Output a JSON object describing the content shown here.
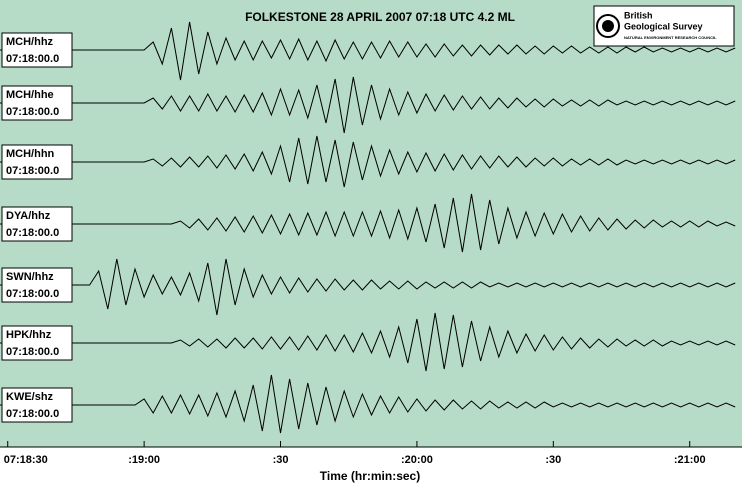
{
  "chart_data": {
    "type": "seismogram",
    "title": "FOLKESTONE  28 APRIL 2007 07:18 UTC 4.2 ML",
    "logo": {
      "line1": "British",
      "line2": "Geological Survey",
      "line3": "NATURAL ENVIRONMENT RESEARCH COUNCIL"
    },
    "x_label": "Time (hr:min:sec)",
    "xlim": [
      28.3,
      191.5
    ],
    "xticks": [
      {
        "value": 30,
        "label": "07:18:30"
      },
      {
        "value": 60,
        "label": ":19:00"
      },
      {
        "value": 90,
        "label": ":30"
      },
      {
        "value": 120,
        "label": ":20:00"
      },
      {
        "value": 150,
        "label": ":30"
      },
      {
        "value": 180,
        "label": ":21:00"
      }
    ],
    "background": "#b6dcc7",
    "color": "#000000",
    "x": [
      28,
      30,
      32,
      34,
      36,
      38,
      40,
      42,
      44,
      46,
      48,
      50,
      52,
      54,
      56,
      58,
      60,
      62,
      64,
      66,
      68,
      70,
      72,
      74,
      76,
      78,
      80,
      82,
      84,
      86,
      88,
      90,
      92,
      94,
      96,
      98,
      100,
      102,
      104,
      106,
      108,
      110,
      112,
      114,
      116,
      118,
      120,
      122,
      124,
      126,
      128,
      130,
      132,
      134,
      136,
      138,
      140,
      142,
      144,
      146,
      148,
      150,
      152,
      154,
      156,
      158,
      160,
      162,
      164,
      166,
      168,
      170,
      172,
      174,
      176,
      178,
      180,
      182,
      184,
      186,
      188,
      190
    ],
    "series": [
      {
        "name": "MCH/hhz",
        "start": "07:18:00.0",
        "values": [
          0,
          0,
          0,
          0,
          0,
          0,
          0,
          0,
          0,
          0,
          0,
          0,
          0,
          0,
          0,
          0,
          0,
          8,
          -14,
          22,
          -30,
          28,
          -24,
          18,
          -14,
          12,
          -10,
          9,
          -10,
          9,
          -8,
          10,
          -9,
          11,
          -10,
          9,
          -11,
          10,
          -9,
          8,
          -9,
          8,
          -8,
          9,
          -7,
          8,
          -7,
          6,
          -7,
          6,
          -6,
          5,
          -6,
          5,
          -5,
          5,
          -4,
          5,
          -4,
          4,
          -4,
          4,
          -3,
          4,
          -3,
          3,
          -3,
          3,
          -3,
          3,
          -2,
          3,
          -2,
          2,
          -2,
          2,
          -2,
          2,
          -2,
          2,
          -2,
          2
        ]
      },
      {
        "name": "MCH/hhe",
        "start": "07:18:00.0",
        "values": [
          0,
          0,
          0,
          0,
          0,
          0,
          0,
          0,
          0,
          0,
          0,
          0,
          0,
          0,
          0,
          0,
          0,
          5,
          -6,
          7,
          -8,
          7,
          -8,
          9,
          -8,
          7,
          -9,
          8,
          -9,
          10,
          -12,
          14,
          -12,
          13,
          -15,
          18,
          -20,
          24,
          -30,
          26,
          -22,
          18,
          -16,
          14,
          -12,
          11,
          -10,
          9,
          -8,
          8,
          -7,
          7,
          -6,
          6,
          -6,
          5,
          -5,
          5,
          -4,
          4,
          -4,
          4,
          -3,
          3,
          -3,
          3,
          -3,
          3,
          -2,
          2,
          -2,
          2,
          -2,
          2,
          -2,
          2,
          -2,
          2,
          -2,
          2,
          -2,
          2
        ]
      },
      {
        "name": "MCH/hhn",
        "start": "07:18:00.0",
        "values": [
          0,
          0,
          0,
          0,
          0,
          0,
          0,
          0,
          0,
          0,
          0,
          0,
          0,
          0,
          0,
          0,
          0,
          3,
          -4,
          4,
          -5,
          5,
          -5,
          6,
          -6,
          7,
          -7,
          8,
          -9,
          10,
          -12,
          16,
          -20,
          24,
          -22,
          26,
          -20,
          22,
          -25,
          20,
          -18,
          16,
          -14,
          12,
          -12,
          10,
          -10,
          9,
          -9,
          8,
          -8,
          7,
          -7,
          6,
          -6,
          6,
          -5,
          5,
          -5,
          4,
          -4,
          4,
          -4,
          3,
          -3,
          3,
          -3,
          3,
          -3,
          2,
          -2,
          2,
          -2,
          2,
          -2,
          2,
          -2,
          2,
          -2,
          2,
          -2,
          2
        ]
      },
      {
        "name": "DYA/hhz",
        "start": "07:18:00.0",
        "values": [
          0,
          0,
          0,
          0,
          0,
          0,
          0,
          0,
          0,
          0,
          0,
          0,
          0,
          0,
          0,
          0,
          0,
          0,
          0,
          0,
          3,
          -4,
          5,
          -6,
          6,
          -7,
          7,
          -8,
          8,
          -9,
          9,
          -10,
          10,
          -11,
          11,
          -11,
          12,
          -12,
          12,
          -12,
          12,
          -12,
          13,
          -14,
          14,
          -15,
          16,
          -18,
          20,
          -24,
          26,
          -28,
          30,
          -26,
          24,
          -20,
          16,
          -14,
          12,
          -12,
          11,
          -10,
          10,
          -8,
          8,
          -7,
          6,
          -6,
          5,
          -5,
          4,
          -4,
          4,
          -3,
          3,
          -3,
          3,
          -3,
          3,
          -2,
          2,
          -2
        ]
      },
      {
        "name": "SWN/hhz",
        "start": "07:18:00.0",
        "values": [
          0,
          0,
          0,
          0,
          0,
          0,
          0,
          0,
          0,
          0,
          0,
          14,
          -24,
          26,
          -20,
          16,
          -12,
          10,
          -9,
          8,
          -10,
          12,
          -16,
          22,
          -30,
          26,
          -20,
          16,
          -12,
          10,
          -9,
          8,
          -8,
          7,
          -7,
          6,
          -6,
          6,
          -5,
          5,
          -5,
          5,
          -4,
          4,
          -4,
          4,
          -4,
          3,
          -3,
          3,
          -3,
          3,
          -3,
          3,
          -2,
          2,
          -2,
          2,
          -2,
          2,
          -2,
          2,
          -2,
          2,
          -2,
          2,
          -2,
          2,
          -2,
          2,
          -2,
          2,
          -2,
          2,
          -2,
          2,
          -2,
          2,
          -2,
          2,
          -2,
          2
        ]
      },
      {
        "name": "HPK/hhz",
        "start": "07:18:00.0",
        "values": [
          0,
          0,
          0,
          0,
          0,
          0,
          0,
          0,
          0,
          0,
          0,
          0,
          0,
          0,
          0,
          0,
          0,
          0,
          0,
          0,
          3,
          -3,
          4,
          -4,
          4,
          -5,
          5,
          -5,
          5,
          -6,
          6,
          -6,
          6,
          -7,
          7,
          -7,
          8,
          -8,
          8,
          -9,
          10,
          -10,
          12,
          -14,
          16,
          -20,
          24,
          -28,
          30,
          -26,
          28,
          -24,
          22,
          -18,
          16,
          -14,
          12,
          -10,
          9,
          -8,
          8,
          -7,
          6,
          -6,
          5,
          -5,
          4,
          -4,
          4,
          -3,
          3,
          -3,
          3,
          -3,
          2,
          -2,
          2,
          -2,
          2,
          -2,
          2,
          -2
        ]
      },
      {
        "name": "KWE/shz",
        "start": "07:18:00.0",
        "values": [
          0,
          0,
          0,
          0,
          0,
          0,
          0,
          0,
          0,
          0,
          0,
          0,
          0,
          0,
          0,
          0,
          6,
          -8,
          9,
          -8,
          10,
          -9,
          10,
          -11,
          12,
          -12,
          14,
          -16,
          20,
          -26,
          30,
          -28,
          26,
          -24,
          22,
          -20,
          18,
          -16,
          14,
          -12,
          11,
          -10,
          9,
          -8,
          8,
          -7,
          6,
          -6,
          5,
          -5,
          5,
          -4,
          4,
          -4,
          4,
          -3,
          3,
          -3,
          3,
          -3,
          3,
          -2,
          2,
          -2,
          2,
          -2,
          2,
          -2,
          2,
          -2,
          2,
          -2,
          2,
          -2,
          2,
          -2,
          2,
          -2,
          2,
          -2,
          2,
          -2
        ]
      }
    ]
  }
}
